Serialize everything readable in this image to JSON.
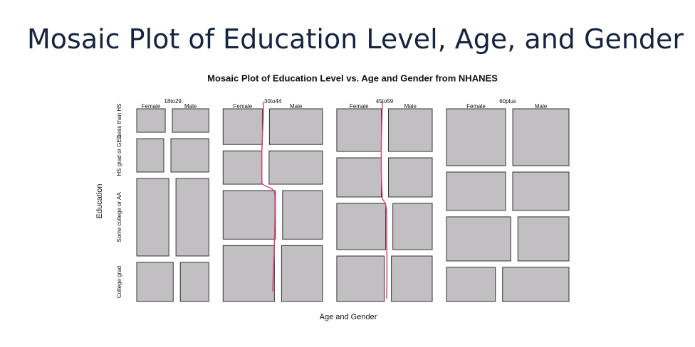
{
  "slide_title": "Mosaic Plot of Education Level, Age, and Gender",
  "chart_data": {
    "type": "mosaic",
    "title": "Mosaic Plot of Education Level vs. Age and Gender from NHANES",
    "x_label": "Age and Gender",
    "y_label": "Education",
    "categories": [
      "18to29",
      "30to44",
      "45to59",
      "60plus"
    ],
    "rows": [
      "Less than HS",
      "HS grad or GED",
      "Some college or AA",
      "College grad"
    ],
    "groups": [
      "Female",
      "Male"
    ],
    "color": "#c1bfc1",
    "values": [
      [
        [
          129,
          165
        ],
        [
          174,
          244
        ],
        [
          480,
          491
        ],
        [
          275,
          215
        ]
      ],
      [
        [
          270,
          365
        ],
        [
          249,
          343
        ],
        [
          490,
          374
        ],
        [
          553,
          442
        ]
      ],
      [
        [
          366,
          360
        ],
        [
          336,
          330
        ],
        [
          436,
          351
        ],
        [
          416,
          358
        ]
      ],
      [
        [
          648,
          616
        ],
        [
          437,
          416
        ],
        [
          546,
          434
        ],
        [
          322,
          437
        ]
      ]
    ]
  }
}
